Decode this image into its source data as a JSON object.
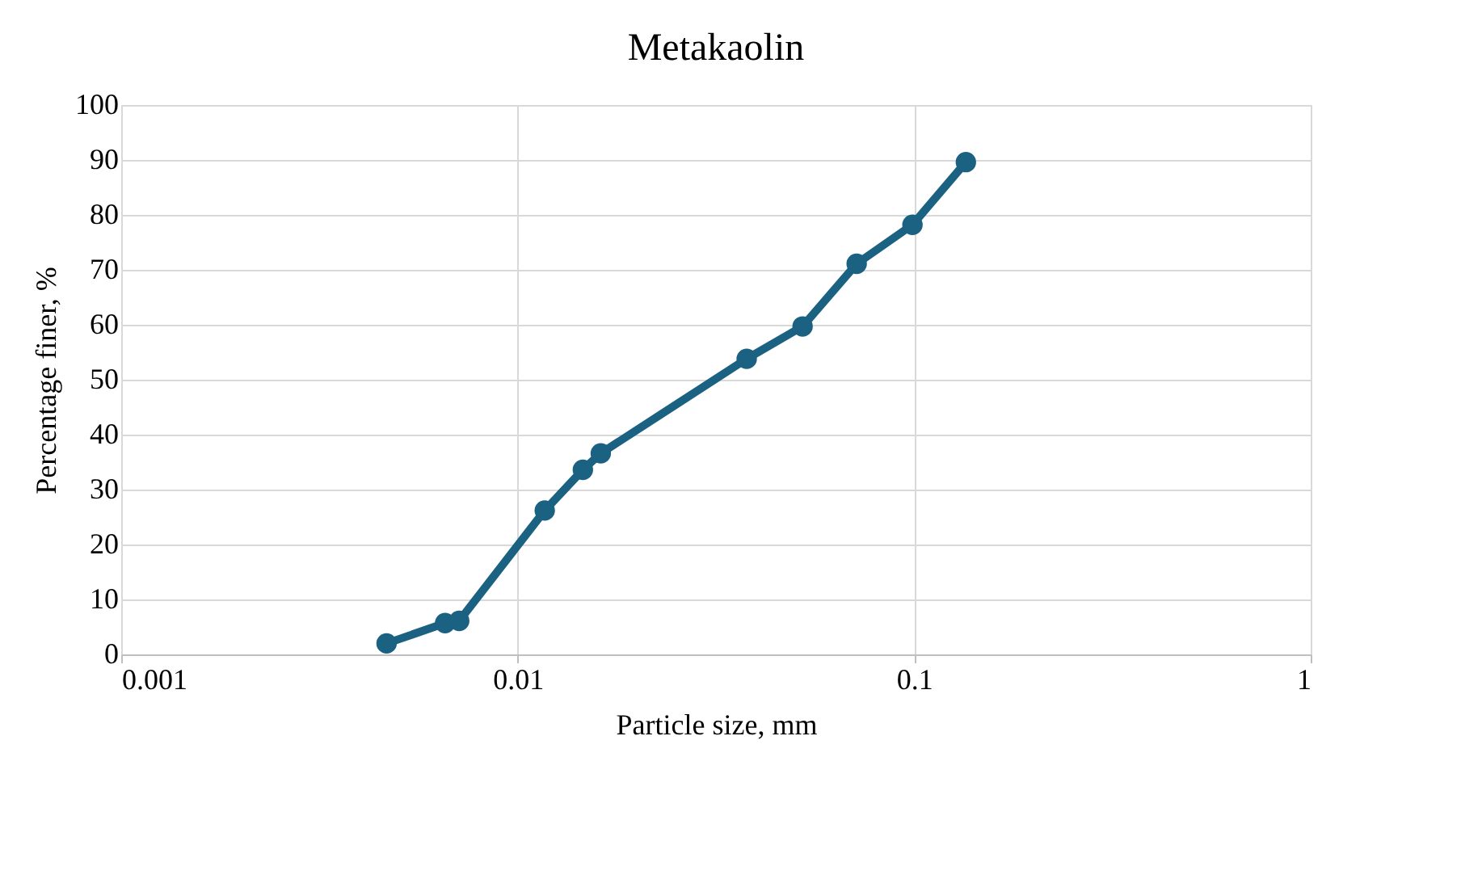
{
  "chart_data": {
    "type": "line",
    "title": "Metakaolin",
    "xlabel": "Particle size, mm",
    "ylabel": "Percentage finer, %",
    "x": [
      0.00467,
      0.00656,
      0.00712,
      0.0117,
      0.0146,
      0.0162,
      0.0378,
      0.0523,
      0.0716,
      0.099,
      0.135
    ],
    "series": [
      {
        "color": "#1a6182",
        "values": [
          2.0,
          5.7,
          6.1,
          26.2,
          33.6,
          36.6,
          53.8,
          59.7,
          71.1,
          78.2,
          89.6
        ]
      }
    ],
    "log": "x",
    "xlim": [
      0.001,
      1
    ],
    "xticks": [
      0.001,
      0.01,
      0.1,
      1
    ],
    "ylim": [
      0,
      100
    ],
    "yticks": [
      0,
      10,
      20,
      30,
      40,
      50,
      60,
      70,
      80,
      90,
      100
    ],
    "grid": true,
    "marker": "circle",
    "line_style": "solid"
  }
}
